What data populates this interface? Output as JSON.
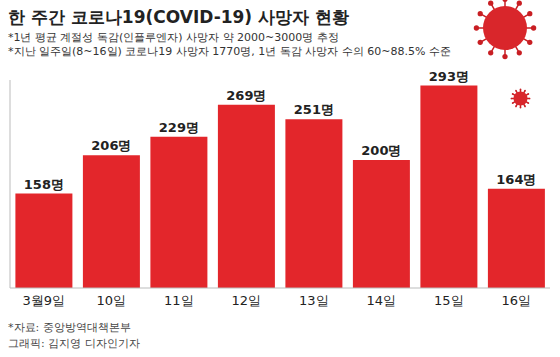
{
  "chart_data": {
    "type": "bar",
    "title": "한 주간 코로나19(COVID-19) 사망자 현황",
    "notes": [
      "*1년 평균 계절성 독감(인플루엔자) 사망자 약 2000~3000명 추정",
      "*지난 일주일(8~16일) 코로나19 사망자 1770명, 1년 독감 사망자 수의 60~88.5% 수준"
    ],
    "source": "*자료: 중앙방역대책본부",
    "credit": "그래픽: 김지영 디자인기자",
    "categories": [
      "3월9일",
      "10일",
      "11일",
      "12일",
      "13일",
      "14일",
      "15일",
      "16일"
    ],
    "values": [
      158,
      206,
      229,
      269,
      251,
      200,
      293,
      164
    ],
    "value_labels": [
      "158명",
      "206명",
      "229명",
      "269명",
      "251명",
      "200명",
      "293명",
      "164명"
    ],
    "color": "#e3262b",
    "ylim": [
      40,
      300
    ],
    "data_labels": true,
    "tick_labels": "x",
    "grid": false
  }
}
